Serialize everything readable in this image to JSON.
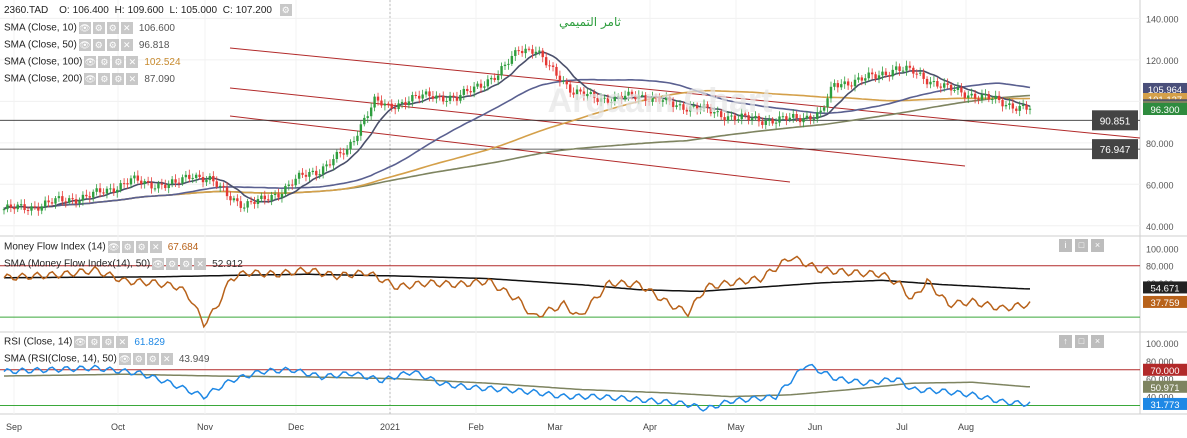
{
  "ticker": "2360.TAD",
  "ohlc": {
    "o_label": "O:",
    "o": "106.400",
    "h_label": "H:",
    "h": "109.600",
    "l_label": "L:",
    "l": "105.000",
    "c_label": "C:",
    "c": "107.200"
  },
  "colors": {
    "up": "#2e9e3e",
    "down": "#e53935",
    "sma10": "#4a4f6a",
    "sma50": "#5a6090",
    "sma100": "#d4a04a",
    "sma200": "#7e8460",
    "channel": "#b22a2a",
    "mfi": "#b8621a",
    "mfisma": "#111111",
    "rsi": "#1e88e5",
    "rsisma": "#7e8460",
    "green": "#3aa83a"
  },
  "main_overlays": [
    {
      "label": "SMA (Close, 10)",
      "value": "106.600",
      "color": "#555555"
    },
    {
      "label": "SMA (Close, 50)",
      "value": "96.818",
      "color": "#555555"
    },
    {
      "label": "SMA (Close, 100)",
      "value": "102.524",
      "color": "#c78a2e"
    },
    {
      "label": "SMA (Close, 200)",
      "value": "87.090",
      "color": "#555555"
    }
  ],
  "mfi_overlays": [
    {
      "label": "Money Flow Index (14)",
      "value": "67.684",
      "color": "#b8621a"
    },
    {
      "label": "SMA (Money Flow Index(14), 50)",
      "value": "52.912",
      "color": "#333333"
    }
  ],
  "rsi_overlays": [
    {
      "label": "RSI (Close, 14)",
      "value": "61.829",
      "color": "#1e88e5"
    },
    {
      "label": "SMA (RSI(Close, 14), 50)",
      "value": "43.949",
      "color": "#555555"
    }
  ],
  "arabic_text": "ثامر التميمي",
  "watermark": "Argaam Chart",
  "chart_data": [
    {
      "type": "candlestick",
      "title": "2360.TAD",
      "x_labels": [
        "Sep",
        "Oct",
        "Nov",
        "Dec",
        "2021",
        "Feb",
        "Mar",
        "Apr",
        "May",
        "Jun",
        "Jul",
        "Aug"
      ],
      "y_ticks": [
        "140.000",
        "120.000",
        "100.000",
        "80.000",
        "60.000",
        "40.000"
      ],
      "ylim": [
        37,
        145
      ],
      "price_tags": [
        {
          "value": "105.964",
          "bg": "#4a4f7a",
          "fg": "#ffffff"
        },
        {
          "value": "101.127",
          "bg": "#d4a04a",
          "fg": "#ffffff"
        },
        {
          "value": "98.100",
          "bg": "#4a4f6a",
          "fg": "#ffffff"
        },
        {
          "value": "97.356",
          "bg": "#7e8460",
          "fg": "#ffffff"
        },
        {
          "value": "96.300",
          "bg": "#2e8b3e",
          "fg": "#ffffff"
        }
      ],
      "horizontal_levels": [
        {
          "value": "90.851",
          "price": 90.851
        },
        {
          "value": "76.947",
          "price": 76.947
        }
      ],
      "close_anchors": [
        [
          0,
          48
        ],
        [
          8,
          49
        ],
        [
          16,
          52
        ],
        [
          24,
          54
        ],
        [
          30,
          57
        ],
        [
          37,
          62
        ],
        [
          42,
          60
        ],
        [
          50,
          60
        ],
        [
          55,
          65
        ],
        [
          60,
          62
        ],
        [
          65,
          55
        ],
        [
          70,
          50
        ],
        [
          75,
          52
        ],
        [
          80,
          56
        ],
        [
          87,
          64
        ],
        [
          92,
          67
        ],
        [
          97,
          73
        ],
        [
          100,
          76
        ],
        [
          105,
          92
        ],
        [
          108,
          100
        ],
        [
          112,
          97
        ],
        [
          118,
          101
        ],
        [
          125,
          103
        ],
        [
          132,
          101
        ],
        [
          138,
          108
        ],
        [
          144,
          112
        ],
        [
          150,
          126
        ],
        [
          155,
          124
        ],
        [
          158,
          118
        ],
        [
          162,
          112
        ],
        [
          166,
          104
        ],
        [
          172,
          102
        ],
        [
          178,
          101
        ],
        [
          185,
          103
        ],
        [
          190,
          101
        ],
        [
          196,
          98
        ],
        [
          202,
          97
        ],
        [
          208,
          94
        ],
        [
          214,
          92
        ],
        [
          220,
          91
        ],
        [
          226,
          91
        ],
        [
          232,
          92
        ],
        [
          238,
          94
        ],
        [
          242,
          108
        ],
        [
          248,
          110
        ],
        [
          254,
          112
        ],
        [
          260,
          116
        ],
        [
          265,
          114
        ],
        [
          270,
          110
        ],
        [
          275,
          106
        ],
        [
          280,
          104
        ],
        [
          285,
          102
        ],
        [
          290,
          100
        ],
        [
          294,
          98
        ],
        [
          298,
          96.3
        ]
      ],
      "channels": [
        {
          "x1": 230,
          "y1": 116,
          "x2": 790,
          "y2": 182
        },
        {
          "x1": 230,
          "y1": 88,
          "x2": 965,
          "y2": 166
        },
        {
          "x1": 230,
          "y1": 48,
          "x2": 1140,
          "y2": 138
        }
      ]
    },
    {
      "type": "line",
      "title": "Money Flow Index (14)",
      "y_ticks": [
        "100.000",
        "80.000",
        "60.000"
      ],
      "ylim": [
        5,
        110
      ],
      "levels": [
        {
          "price": 80,
          "color": "#b22a2a"
        },
        {
          "price": 20,
          "color": "#3aa83a"
        }
      ],
      "mfi_anchors": [
        [
          0,
          66
        ],
        [
          20,
          70
        ],
        [
          30,
          75
        ],
        [
          40,
          62
        ],
        [
          50,
          60
        ],
        [
          58,
          55
        ],
        [
          62,
          40
        ],
        [
          66,
          12
        ],
        [
          70,
          30
        ],
        [
          75,
          65
        ],
        [
          80,
          72
        ],
        [
          90,
          70
        ],
        [
          100,
          75
        ],
        [
          110,
          68
        ],
        [
          120,
          72
        ],
        [
          130,
          55
        ],
        [
          140,
          60
        ],
        [
          150,
          58
        ],
        [
          160,
          62
        ],
        [
          170,
          40
        ],
        [
          175,
          20
        ],
        [
          185,
          35
        ],
        [
          190,
          20
        ],
        [
          200,
          60
        ],
        [
          210,
          58
        ],
        [
          220,
          35
        ],
        [
          226,
          25
        ],
        [
          232,
          55
        ],
        [
          240,
          60
        ],
        [
          250,
          65
        ],
        [
          260,
          90
        ],
        [
          270,
          75
        ],
        [
          280,
          72
        ],
        [
          290,
          70
        ],
        [
          296,
          58
        ],
        [
          300,
          40
        ],
        [
          305,
          62
        ],
        [
          312,
          35
        ],
        [
          320,
          38
        ],
        [
          330,
          30
        ],
        [
          338,
          35
        ]
      ],
      "mfisma_anchors": [
        [
          0,
          66
        ],
        [
          50,
          67
        ],
        [
          80,
          69
        ],
        [
          100,
          70
        ],
        [
          130,
          68
        ],
        [
          160,
          65
        ],
        [
          190,
          58
        ],
        [
          210,
          52
        ],
        [
          230,
          50
        ],
        [
          250,
          55
        ],
        [
          270,
          60
        ],
        [
          290,
          63
        ],
        [
          310,
          58
        ],
        [
          338,
          52.9
        ]
      ],
      "value_tags": [
        {
          "value": "54.671",
          "bg": "#222222",
          "fg": "#ffffff"
        },
        {
          "value": "37.759",
          "bg": "#b8621a",
          "fg": "#ffffff"
        }
      ]
    },
    {
      "type": "line",
      "title": "RSI (Close, 14)",
      "y_ticks": [
        "100.000",
        "80.000",
        "60.000",
        "40.000"
      ],
      "ylim": [
        25,
        110
      ],
      "levels": [
        {
          "price": 70,
          "color": "#b22a2a"
        },
        {
          "price": 30,
          "color": "#3aa83a"
        }
      ],
      "rsi_anchors": [
        [
          0,
          68
        ],
        [
          15,
          70
        ],
        [
          30,
          72
        ],
        [
          45,
          66
        ],
        [
          55,
          55
        ],
        [
          66,
          40
        ],
        [
          75,
          58
        ],
        [
          85,
          68
        ],
        [
          95,
          70
        ],
        [
          105,
          62
        ],
        [
          115,
          66
        ],
        [
          125,
          58
        ],
        [
          135,
          68
        ],
        [
          145,
          54
        ],
        [
          155,
          50
        ],
        [
          165,
          48
        ],
        [
          175,
          45
        ],
        [
          185,
          40
        ],
        [
          195,
          40
        ],
        [
          205,
          38
        ],
        [
          215,
          35
        ],
        [
          225,
          32
        ],
        [
          232,
          26
        ],
        [
          240,
          35
        ],
        [
          255,
          40
        ],
        [
          265,
          76
        ],
        [
          275,
          60
        ],
        [
          285,
          55
        ],
        [
          295,
          60
        ],
        [
          300,
          48
        ],
        [
          310,
          46
        ],
        [
          320,
          42
        ],
        [
          330,
          34
        ],
        [
          338,
          31.8
        ]
      ],
      "rsisma_anchors": [
        [
          0,
          63
        ],
        [
          40,
          65
        ],
        [
          70,
          63
        ],
        [
          100,
          62
        ],
        [
          130,
          60
        ],
        [
          160,
          55
        ],
        [
          190,
          48
        ],
        [
          220,
          44
        ],
        [
          240,
          40
        ],
        [
          260,
          42
        ],
        [
          280,
          48
        ],
        [
          300,
          55
        ],
        [
          320,
          56
        ],
        [
          338,
          50.97
        ]
      ],
      "value_tags": [
        {
          "value": "70.000",
          "bg": "#b22a2a",
          "fg": "#ffffff"
        },
        {
          "value": "50.971",
          "bg": "#7e8460",
          "fg": "#ffffff"
        },
        {
          "value": "31.773",
          "bg": "#1e88e5",
          "fg": "#ffffff"
        }
      ]
    }
  ]
}
